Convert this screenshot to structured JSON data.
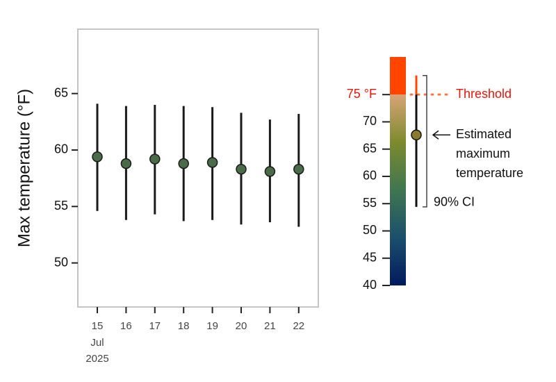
{
  "chart_data": {
    "type": "errorbar",
    "ylabel": "Max temperature (°F)",
    "x": [
      "2025-07-15",
      "2025-07-16",
      "2025-07-17",
      "2025-07-18",
      "2025-07-19",
      "2025-07-20",
      "2025-07-21",
      "2025-07-22"
    ],
    "xticks": [
      {
        "value": "2025-07-15",
        "label": "15"
      },
      {
        "value": "2025-07-16",
        "label": "16"
      },
      {
        "value": "2025-07-17",
        "label": "17"
      },
      {
        "value": "2025-07-18",
        "label": "18"
      },
      {
        "value": "2025-07-19",
        "label": "19"
      },
      {
        "value": "2025-07-20",
        "label": "20"
      },
      {
        "value": "2025-07-21",
        "label": "21"
      },
      {
        "value": "2025-07-22",
        "label": "22"
      }
    ],
    "x_month_label": "Jul",
    "x_year_label": "2025",
    "values": [
      59.4,
      58.8,
      59.2,
      58.8,
      58.9,
      58.3,
      58.1,
      58.3
    ],
    "lower": [
      54.6,
      53.8,
      54.3,
      53.7,
      53.8,
      53.4,
      53.6,
      53.2
    ],
    "upper": [
      64.1,
      63.9,
      64.0,
      63.9,
      63.8,
      63.3,
      62.7,
      63.2
    ],
    "color": "#4a6b48",
    "ylim": [
      46.1,
      70.7
    ],
    "yticks": [
      50,
      55,
      60,
      65
    ],
    "legend": {
      "clim": [
        40,
        81.9
      ],
      "cticks": [
        40,
        45,
        50,
        55,
        60,
        65,
        70,
        {
          "value": 75,
          "label": "75 °F"
        }
      ],
      "colormap": [
        "#001a5e",
        "#1b4f6c",
        "#3f7650",
        "#7d8a2e",
        "#d8a478"
      ],
      "above_color": "#ff4500",
      "threshold_text": "Threshold",
      "example_value": 67.6,
      "example_lower": 54.4,
      "example_upper": 78.5,
      "example_color": "#8a7a2e",
      "estimate_label": [
        "Estimated",
        "maximum",
        "temperature"
      ],
      "ci_label": "90% CI"
    }
  }
}
